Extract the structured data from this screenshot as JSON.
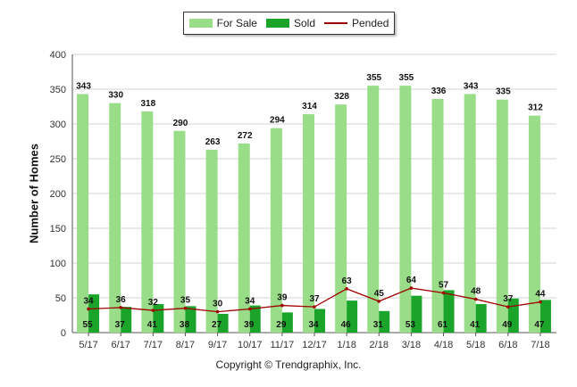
{
  "legend": {
    "for_sale": "For Sale",
    "sold": "Sold",
    "pended": "Pended"
  },
  "footer": "Copyright © Trendgraphix, Inc.",
  "colors": {
    "for_sale": "#99dd88",
    "sold": "#1aa52a",
    "pended": "#a00000",
    "grid": "#d3d3d3"
  },
  "chart_data": {
    "type": "bar",
    "title": "",
    "xlabel": "",
    "ylabel": "Number of Homes",
    "ylim": [
      0,
      400
    ],
    "yticks": [
      0,
      50,
      100,
      150,
      200,
      250,
      300,
      350,
      400
    ],
    "grid": true,
    "legend_position": "top-center",
    "categories": [
      "5/17",
      "6/17",
      "7/17",
      "8/17",
      "9/17",
      "10/17",
      "11/17",
      "12/17",
      "1/18",
      "2/18",
      "3/18",
      "4/18",
      "5/18",
      "6/18",
      "7/18"
    ],
    "series": [
      {
        "name": "For Sale",
        "type": "bar",
        "values": [
          343,
          330,
          318,
          290,
          263,
          272,
          294,
          314,
          328,
          355,
          355,
          336,
          343,
          335,
          312
        ]
      },
      {
        "name": "Sold",
        "type": "bar",
        "values": [
          55,
          37,
          41,
          38,
          27,
          39,
          29,
          34,
          46,
          31,
          53,
          61,
          41,
          49,
          47
        ]
      },
      {
        "name": "Pended",
        "type": "line",
        "values": [
          34,
          36,
          32,
          35,
          30,
          34,
          39,
          37,
          63,
          45,
          64,
          57,
          48,
          37,
          44
        ]
      }
    ]
  }
}
